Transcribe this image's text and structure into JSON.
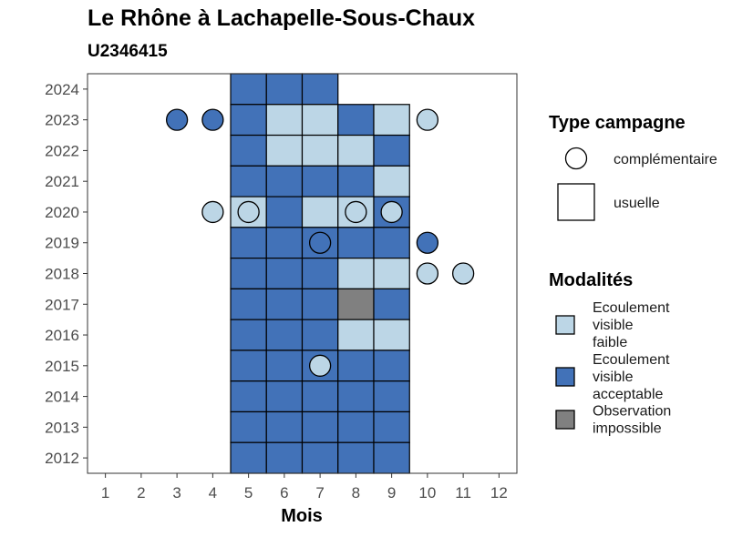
{
  "chart_data": {
    "type": "heatmap",
    "title": "Le Rhône à Lachapelle-Sous-Chaux",
    "subtitle": "U2346415",
    "xlabel": "Mois",
    "ylabel": "",
    "x_ticks": [
      1,
      2,
      3,
      4,
      5,
      6,
      7,
      8,
      9,
      10,
      11,
      12
    ],
    "y_ticks": [
      2012,
      2013,
      2014,
      2015,
      2016,
      2017,
      2018,
      2019,
      2020,
      2021,
      2022,
      2023,
      2024
    ],
    "xlim": [
      0.5,
      12.5
    ],
    "ylim": [
      2011.5,
      2024.5
    ],
    "grid": false,
    "colors": {
      "faible": "#bcd6e6",
      "acceptable": "#4272b8",
      "impossible": "#808080"
    },
    "legend_type": {
      "title": "Type campagne",
      "items": [
        {
          "label": "complémentaire",
          "shape": "circle"
        },
        {
          "label": "usuelle",
          "shape": "square"
        }
      ]
    },
    "legend_modalites": {
      "title": "Modalités",
      "items": [
        {
          "key": "faible",
          "lines": [
            "Ecoulement",
            "visible",
            "faible"
          ]
        },
        {
          "key": "acceptable",
          "lines": [
            "Ecoulement",
            "visible",
            "acceptable"
          ]
        },
        {
          "key": "impossible",
          "lines": [
            "Observation",
            "impossible"
          ]
        }
      ]
    },
    "usuelle": [
      {
        "year": 2024,
        "month": 5,
        "modalite": "acceptable"
      },
      {
        "year": 2024,
        "month": 6,
        "modalite": "acceptable"
      },
      {
        "year": 2024,
        "month": 7,
        "modalite": "acceptable"
      },
      {
        "year": 2023,
        "month": 5,
        "modalite": "acceptable"
      },
      {
        "year": 2023,
        "month": 6,
        "modalite": "faible"
      },
      {
        "year": 2023,
        "month": 7,
        "modalite": "faible"
      },
      {
        "year": 2023,
        "month": 8,
        "modalite": "acceptable"
      },
      {
        "year": 2023,
        "month": 9,
        "modalite": "faible"
      },
      {
        "year": 2022,
        "month": 5,
        "modalite": "acceptable"
      },
      {
        "year": 2022,
        "month": 6,
        "modalite": "faible"
      },
      {
        "year": 2022,
        "month": 7,
        "modalite": "faible"
      },
      {
        "year": 2022,
        "month": 8,
        "modalite": "faible"
      },
      {
        "year": 2022,
        "month": 9,
        "modalite": "acceptable"
      },
      {
        "year": 2021,
        "month": 5,
        "modalite": "acceptable"
      },
      {
        "year": 2021,
        "month": 6,
        "modalite": "acceptable"
      },
      {
        "year": 2021,
        "month": 7,
        "modalite": "acceptable"
      },
      {
        "year": 2021,
        "month": 8,
        "modalite": "acceptable"
      },
      {
        "year": 2021,
        "month": 9,
        "modalite": "faible"
      },
      {
        "year": 2020,
        "month": 5,
        "modalite": "faible"
      },
      {
        "year": 2020,
        "month": 6,
        "modalite": "acceptable"
      },
      {
        "year": 2020,
        "month": 7,
        "modalite": "faible"
      },
      {
        "year": 2020,
        "month": 8,
        "modalite": "faible"
      },
      {
        "year": 2020,
        "month": 9,
        "modalite": "acceptable"
      },
      {
        "year": 2019,
        "month": 5,
        "modalite": "acceptable"
      },
      {
        "year": 2019,
        "month": 6,
        "modalite": "acceptable"
      },
      {
        "year": 2019,
        "month": 7,
        "modalite": "acceptable"
      },
      {
        "year": 2019,
        "month": 8,
        "modalite": "acceptable"
      },
      {
        "year": 2019,
        "month": 9,
        "modalite": "acceptable"
      },
      {
        "year": 2018,
        "month": 5,
        "modalite": "acceptable"
      },
      {
        "year": 2018,
        "month": 6,
        "modalite": "acceptable"
      },
      {
        "year": 2018,
        "month": 7,
        "modalite": "acceptable"
      },
      {
        "year": 2018,
        "month": 8,
        "modalite": "faible"
      },
      {
        "year": 2018,
        "month": 9,
        "modalite": "faible"
      },
      {
        "year": 2017,
        "month": 5,
        "modalite": "acceptable"
      },
      {
        "year": 2017,
        "month": 6,
        "modalite": "acceptable"
      },
      {
        "year": 2017,
        "month": 7,
        "modalite": "acceptable"
      },
      {
        "year": 2017,
        "month": 8,
        "modalite": "impossible"
      },
      {
        "year": 2017,
        "month": 9,
        "modalite": "acceptable"
      },
      {
        "year": 2016,
        "month": 5,
        "modalite": "acceptable"
      },
      {
        "year": 2016,
        "month": 6,
        "modalite": "acceptable"
      },
      {
        "year": 2016,
        "month": 7,
        "modalite": "acceptable"
      },
      {
        "year": 2016,
        "month": 8,
        "modalite": "faible"
      },
      {
        "year": 2016,
        "month": 9,
        "modalite": "faible"
      },
      {
        "year": 2015,
        "month": 5,
        "modalite": "acceptable"
      },
      {
        "year": 2015,
        "month": 6,
        "modalite": "acceptable"
      },
      {
        "year": 2015,
        "month": 7,
        "modalite": "acceptable"
      },
      {
        "year": 2015,
        "month": 8,
        "modalite": "acceptable"
      },
      {
        "year": 2015,
        "month": 9,
        "modalite": "acceptable"
      },
      {
        "year": 2014,
        "month": 5,
        "modalite": "acceptable"
      },
      {
        "year": 2014,
        "month": 6,
        "modalite": "acceptable"
      },
      {
        "year": 2014,
        "month": 7,
        "modalite": "acceptable"
      },
      {
        "year": 2014,
        "month": 8,
        "modalite": "acceptable"
      },
      {
        "year": 2014,
        "month": 9,
        "modalite": "acceptable"
      },
      {
        "year": 2013,
        "month": 5,
        "modalite": "acceptable"
      },
      {
        "year": 2013,
        "month": 6,
        "modalite": "acceptable"
      },
      {
        "year": 2013,
        "month": 7,
        "modalite": "acceptable"
      },
      {
        "year": 2013,
        "month": 8,
        "modalite": "acceptable"
      },
      {
        "year": 2013,
        "month": 9,
        "modalite": "acceptable"
      },
      {
        "year": 2012,
        "month": 5,
        "modalite": "acceptable"
      },
      {
        "year": 2012,
        "month": 6,
        "modalite": "acceptable"
      },
      {
        "year": 2012,
        "month": 7,
        "modalite": "acceptable"
      },
      {
        "year": 2012,
        "month": 8,
        "modalite": "acceptable"
      },
      {
        "year": 2012,
        "month": 9,
        "modalite": "acceptable"
      }
    ],
    "complementaire": [
      {
        "year": 2023,
        "month": 3,
        "modalite": "acceptable"
      },
      {
        "year": 2023,
        "month": 4,
        "modalite": "acceptable"
      },
      {
        "year": 2023,
        "month": 10,
        "modalite": "faible"
      },
      {
        "year": 2020,
        "month": 4,
        "modalite": "faible"
      },
      {
        "year": 2020,
        "month": 5,
        "modalite": "faible"
      },
      {
        "year": 2020,
        "month": 8,
        "modalite": "faible"
      },
      {
        "year": 2020,
        "month": 9,
        "modalite": "faible"
      },
      {
        "year": 2019,
        "month": 7,
        "modalite": "acceptable"
      },
      {
        "year": 2019,
        "month": 10,
        "modalite": "acceptable"
      },
      {
        "year": 2018,
        "month": 10,
        "modalite": "faible"
      },
      {
        "year": 2018,
        "month": 11,
        "modalite": "faible"
      },
      {
        "year": 2015,
        "month": 7,
        "modalite": "faible"
      }
    ]
  }
}
